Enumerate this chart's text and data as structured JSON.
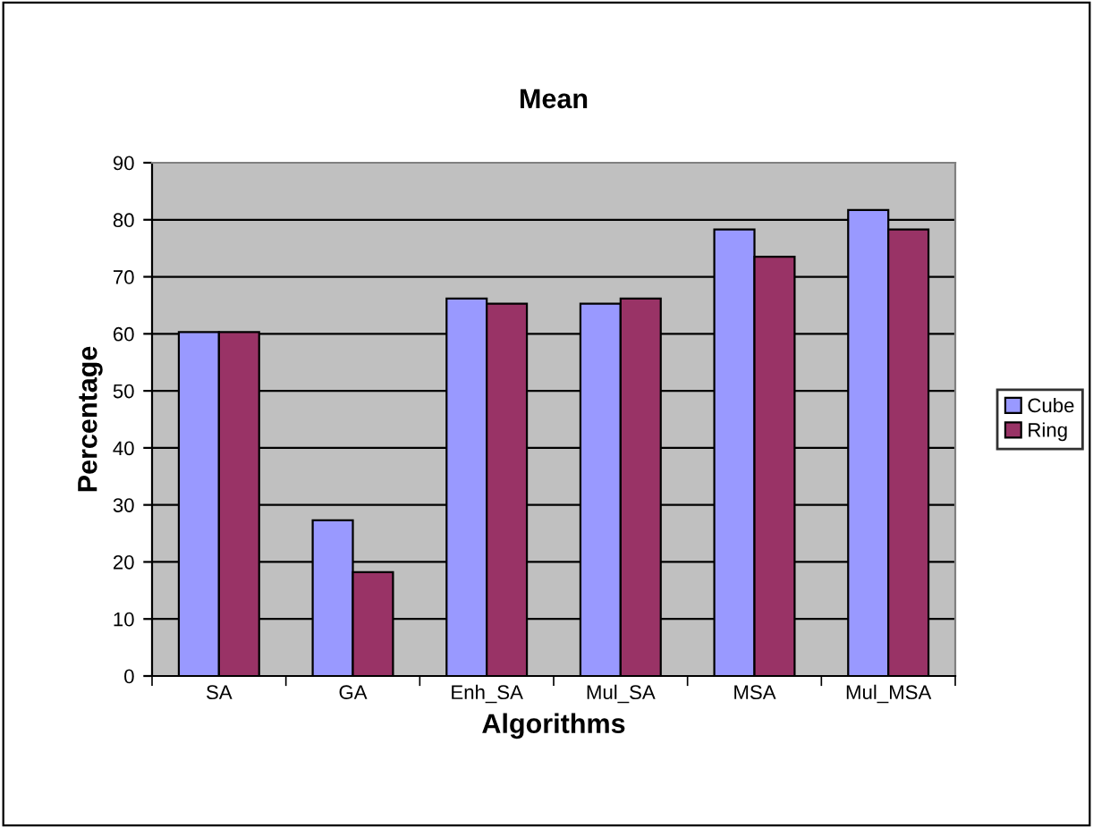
{
  "chart_data": {
    "type": "bar",
    "title": "Mean",
    "xlabel": "Algorithms",
    "ylabel": "Percentage",
    "categories": [
      "SA",
      "GA",
      "Enh_SA",
      "Mul_SA",
      "MSA",
      "Mul_MSA"
    ],
    "series": [
      {
        "name": "Cube",
        "color": "#9999ff",
        "values": [
          60.3,
          27.3,
          66.2,
          65.3,
          78.3,
          81.7
        ]
      },
      {
        "name": "Ring",
        "color": "#993366",
        "values": [
          60.3,
          18.2,
          65.3,
          66.2,
          73.5,
          78.3
        ]
      }
    ],
    "ylim": [
      0,
      90
    ],
    "yticks": [
      0,
      10,
      20,
      30,
      40,
      50,
      60,
      70,
      80,
      90
    ],
    "grid": "y",
    "legend": "right"
  }
}
